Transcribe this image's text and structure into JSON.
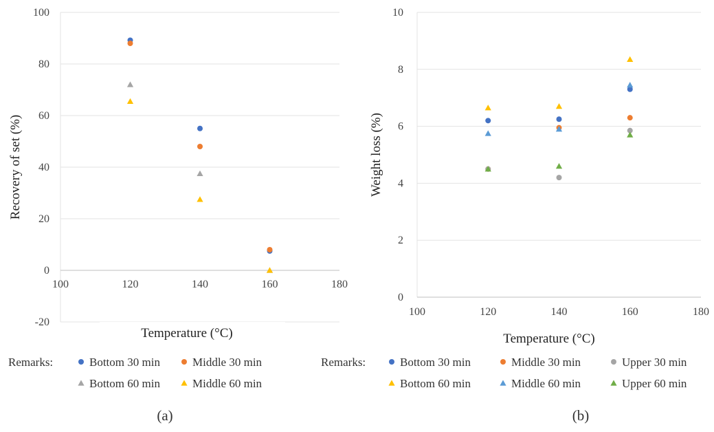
{
  "colors": {
    "blue": "#4472C4",
    "orange": "#ED7D31",
    "gray": "#A5A5A5",
    "yellow": "#FFC000",
    "light_blue": "#5B9BD5",
    "green": "#70AD47",
    "grid": "#e3e3e3"
  },
  "chart_data": [
    {
      "type": "scatter",
      "caption": "(a)",
      "title": "",
      "xlabel": "Temperature (°C)",
      "ylabel": "Recovery of set (%)",
      "xlim": [
        100,
        180
      ],
      "ylim": [
        -20,
        100
      ],
      "xticks": [
        100,
        120,
        140,
        160,
        180
      ],
      "yticks": [
        -20,
        0,
        20,
        40,
        60,
        80,
        100
      ],
      "grid": "horizontal",
      "legend_title": "Remarks:",
      "legend_position": "bottom",
      "series": [
        {
          "name": "Bottom 30 min",
          "marker": "circle",
          "color": "#4472C4",
          "points": [
            [
              120,
              89.2
            ],
            [
              140,
              55.0
            ],
            [
              160,
              7.5
            ]
          ]
        },
        {
          "name": "Middle 30 min",
          "marker": "circle",
          "color": "#ED7D31",
          "points": [
            [
              120,
              88.0
            ],
            [
              140,
              48.0
            ],
            [
              160,
              8.0
            ]
          ]
        },
        {
          "name": "Bottom 60 min",
          "marker": "triangle",
          "color": "#A5A5A5",
          "points": [
            [
              120,
              72.0
            ],
            [
              140,
              37.5
            ],
            [
              160,
              0.0
            ]
          ]
        },
        {
          "name": "Middle 60 min",
          "marker": "triangle",
          "color": "#FFC000",
          "points": [
            [
              120,
              65.5
            ],
            [
              140,
              27.5
            ],
            [
              160,
              0.0
            ]
          ]
        }
      ]
    },
    {
      "type": "scatter",
      "caption": "(b)",
      "title": "",
      "xlabel": "Temperature (°C)",
      "ylabel": "Weight loss (%)",
      "xlim": [
        100,
        180
      ],
      "ylim": [
        0,
        10
      ],
      "xticks": [
        100,
        120,
        140,
        160,
        180
      ],
      "yticks": [
        0,
        2,
        4,
        6,
        8,
        10
      ],
      "grid": "horizontal",
      "legend_title": "Remarks:",
      "legend_position": "bottom",
      "series": [
        {
          "name": "Bottom 30 min",
          "marker": "circle",
          "color": "#4472C4",
          "points": [
            [
              120,
              6.2
            ],
            [
              140,
              6.25
            ],
            [
              160,
              7.3
            ]
          ]
        },
        {
          "name": "Middle 30 min",
          "marker": "circle",
          "color": "#ED7D31",
          "points": [
            [
              120,
              4.5
            ],
            [
              140,
              5.95
            ],
            [
              160,
              6.3
            ]
          ]
        },
        {
          "name": "Upper 30 min",
          "marker": "circle",
          "color": "#A5A5A5",
          "points": [
            [
              120,
              4.5
            ],
            [
              140,
              4.2
            ],
            [
              160,
              5.85
            ]
          ]
        },
        {
          "name": "Bottom 60 min",
          "marker": "triangle",
          "color": "#FFC000",
          "points": [
            [
              120,
              6.65
            ],
            [
              140,
              6.7
            ],
            [
              160,
              8.35
            ]
          ]
        },
        {
          "name": "Middle 60 min",
          "marker": "triangle",
          "color": "#5B9BD5",
          "points": [
            [
              120,
              5.75
            ],
            [
              140,
              5.9
            ],
            [
              160,
              7.45
            ]
          ]
        },
        {
          "name": "Upper 60 min",
          "marker": "triangle",
          "color": "#70AD47",
          "points": [
            [
              120,
              4.5
            ],
            [
              140,
              4.6
            ],
            [
              160,
              5.7
            ]
          ]
        }
      ]
    }
  ]
}
